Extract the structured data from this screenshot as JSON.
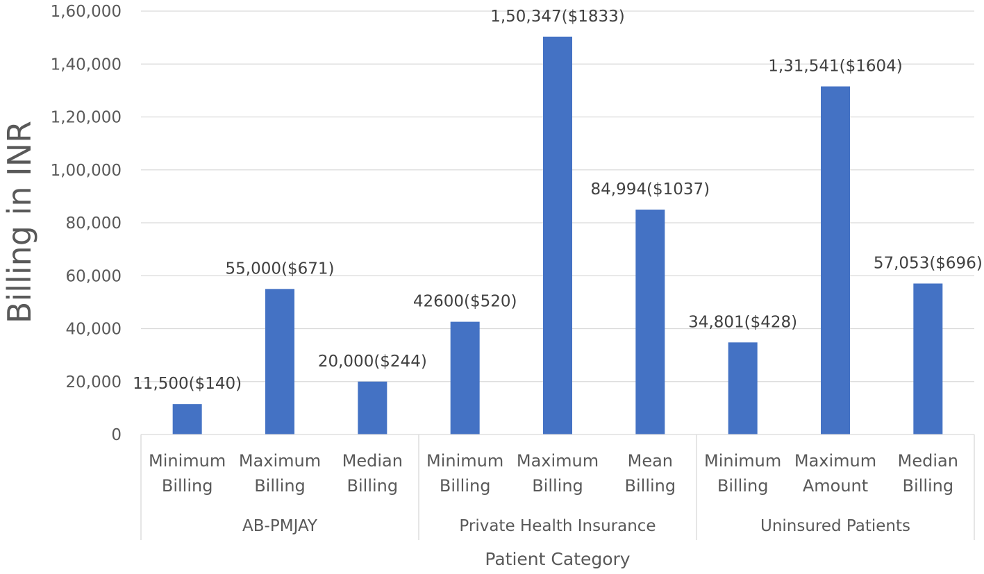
{
  "chart_data": {
    "type": "bar",
    "ylabel": "Billing in INR",
    "xlabel": "Patient Category",
    "ylim": [
      0,
      160000
    ],
    "ytick_step": 20000,
    "ytick_labels": [
      "0",
      "20,000",
      "40,000",
      "60,000",
      "80,000",
      "1,00,000",
      "1,20,000",
      "1,40,000",
      "1,60,000"
    ],
    "grid": true,
    "bar_color": "#4472C4",
    "groups": [
      {
        "name": "AB-PMJAY",
        "categories": [
          {
            "line1": "Minimum",
            "line2": "Billing",
            "value": 11500,
            "label": "11,500($140)"
          },
          {
            "line1": "Maximum",
            "line2": "Billing",
            "value": 55000,
            "label": "55,000($671)"
          },
          {
            "line1": "Median",
            "line2": "Billing",
            "value": 20000,
            "label": "20,000($244)"
          }
        ]
      },
      {
        "name": "Private Health Insurance",
        "categories": [
          {
            "line1": "Minimum",
            "line2": "Billing",
            "value": 42600,
            "label": "42600($520)"
          },
          {
            "line1": "Maximum",
            "line2": "Billing",
            "value": 150347,
            "label": "1,50,347($1833)"
          },
          {
            "line1": "Mean",
            "line2": "Billing",
            "value": 84994,
            "label": "84,994($1037)"
          }
        ]
      },
      {
        "name": "Uninsured Patients",
        "categories": [
          {
            "line1": "Minimum",
            "line2": "Billing",
            "value": 34801,
            "label": "34,801($428)"
          },
          {
            "line1": "Maximum",
            "line2": "Amount",
            "value": 131541,
            "label": "1,31,541($1604)"
          },
          {
            "line1": "Median",
            "line2": "Billing",
            "value": 57053,
            "label": "57,053($696)"
          }
        ]
      }
    ]
  }
}
